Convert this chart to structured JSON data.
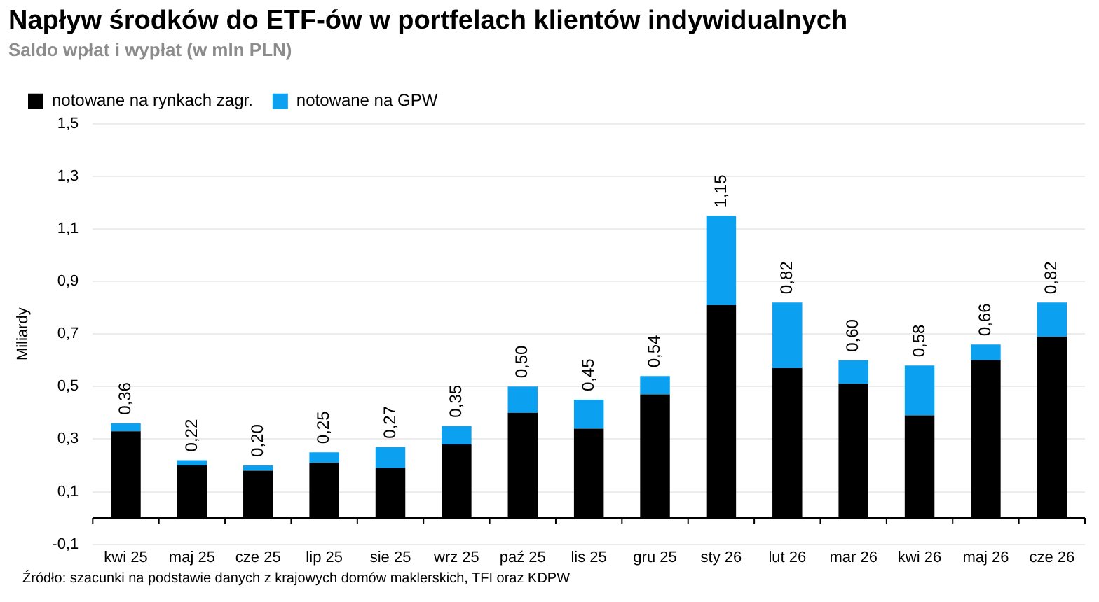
{
  "chart_data": {
    "type": "bar",
    "title": "Napływ środków do ETF-ów w portfelach klientów indywidualnych",
    "subtitle": "Saldo wpłat i wypłat (w mln PLN)",
    "ylabel": "Miliardy",
    "categories": [
      "kwi 25",
      "maj 25",
      "cze 25",
      "lip 25",
      "sie 25",
      "wrz 25",
      "paź 25",
      "lis 25",
      "gru 25",
      "sty 26",
      "lut 26",
      "mar 26",
      "kwi 26",
      "maj 26",
      "cze 26"
    ],
    "stacked": true,
    "series": [
      {
        "name": "notowane na rynkach zagr.",
        "color": "#000000",
        "values": [
          0.33,
          0.2,
          0.18,
          0.21,
          0.19,
          0.28,
          0.4,
          0.34,
          0.47,
          0.81,
          0.57,
          0.51,
          0.39,
          0.6,
          0.69
        ]
      },
      {
        "name": "notowane na GPW",
        "color": "#0ba0f0",
        "values": [
          0.03,
          0.02,
          0.02,
          0.04,
          0.08,
          0.07,
          0.1,
          0.11,
          0.07,
          0.34,
          0.25,
          0.09,
          0.19,
          0.06,
          0.13
        ]
      }
    ],
    "totals": [
      "0,36",
      "0,22",
      "0,20",
      "0,25",
      "0,27",
      "0,35",
      "0,50",
      "0,45",
      "0,54",
      "1,15",
      "0,82",
      "0,60",
      "0,58",
      "0,66",
      "0,82"
    ],
    "ylim": [
      -0.1,
      1.5
    ],
    "yticks": [
      {
        "value": -0.1,
        "label": "-0,1"
      },
      {
        "value": 0.1,
        "label": "0,1"
      },
      {
        "value": 0.3,
        "label": "0,3"
      },
      {
        "value": 0.5,
        "label": "0,5"
      },
      {
        "value": 0.7,
        "label": "0,7"
      },
      {
        "value": 0.9,
        "label": "0,9"
      },
      {
        "value": 1.1,
        "label": "1,1"
      },
      {
        "value": 1.3,
        "label": "1,3"
      },
      {
        "value": 1.5,
        "label": "1,5"
      }
    ],
    "grid": "y",
    "legend": "top left",
    "annotations": [
      "Źródło: szacunki na podstawie danych z krajowych domów maklerskich, TFI oraz KDPW"
    ]
  }
}
